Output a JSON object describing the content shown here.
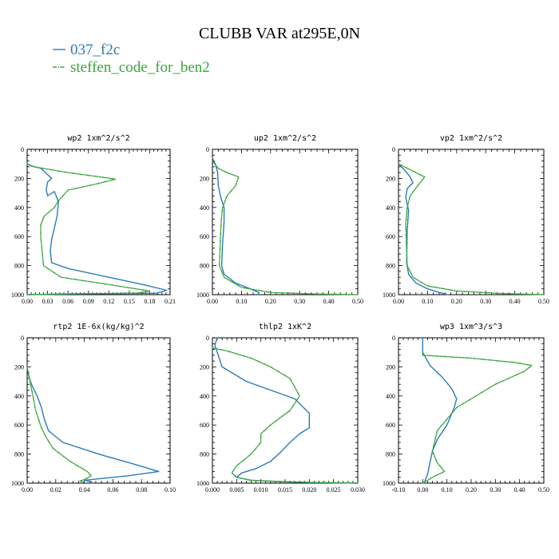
{
  "figure": {
    "title": "CLUBB VAR at295E,0N",
    "legend": [
      {
        "label": "037_f2c",
        "color": "#2b7bb9",
        "dash": false
      },
      {
        "label": "steffen_code_for_ben2",
        "color": "#3aa33a",
        "dash": true
      }
    ]
  },
  "chart_data": [
    {
      "type": "line",
      "title": "wp2  1xm^2/s^2",
      "xlabel": "",
      "ylabel": "",
      "xlim": [
        0,
        0.21
      ],
      "ylim": [
        1000,
        0
      ],
      "xticks": [
        "0.00",
        "0.03",
        "0.06",
        "0.09",
        "0.12",
        "0.15",
        "0.18",
        "0.21"
      ],
      "yticks": [
        "0",
        "200",
        "400",
        "600",
        "800",
        "1000"
      ],
      "series": [
        {
          "name": "037_f2c",
          "color": "#2b7bb9",
          "dash": false,
          "x": [
            0.0,
            0.006,
            0.02,
            0.036,
            0.03,
            0.028,
            0.03,
            0.04,
            0.046,
            0.044,
            0.04,
            0.036,
            0.034,
            0.036,
            0.06,
            0.12,
            0.17,
            0.205,
            0.19,
            0.07,
            0.0
          ],
          "y": [
            100,
            115,
            130,
            200,
            225,
            280,
            320,
            290,
            360,
            460,
            540,
            620,
            700,
            780,
            820,
            880,
            930,
            970,
            990,
            995,
            1000
          ]
        },
        {
          "name": "steffen_code_for_ben2",
          "color": "#3aa33a",
          "dash": true,
          "x": [
            0.0,
            0.01,
            0.06,
            0.1,
            0.13,
            0.1,
            0.06,
            0.045,
            0.04,
            0.025,
            0.02,
            0.02,
            0.024,
            0.05,
            0.12,
            0.16,
            0.18,
            0.16,
            0.05,
            0.0
          ],
          "y": [
            100,
            120,
            160,
            185,
            205,
            240,
            280,
            360,
            400,
            460,
            520,
            600,
            800,
            880,
            930,
            960,
            975,
            990,
            995,
            1000
          ]
        }
      ]
    },
    {
      "type": "line",
      "title": "up2  1xm^2/s^2",
      "xlabel": "",
      "ylabel": "",
      "xlim": [
        0,
        0.5
      ],
      "ylim": [
        1000,
        0
      ],
      "xticks": [
        "0.00",
        "0.10",
        "0.20",
        "0.30",
        "0.40",
        "0.50"
      ],
      "yticks": [
        "0",
        "200",
        "400",
        "600",
        "800",
        "1000"
      ],
      "series": [
        {
          "name": "037_f2c",
          "color": "#2b7bb9",
          "dash": false,
          "x": [
            0.0,
            0.01,
            0.018,
            0.02,
            0.03,
            0.04,
            0.04,
            0.035,
            0.032,
            0.04,
            0.08,
            0.13,
            0.16,
            0.16
          ],
          "y": [
            60,
            100,
            160,
            250,
            340,
            400,
            500,
            650,
            800,
            860,
            920,
            960,
            985,
            1000
          ]
        },
        {
          "name": "steffen_code_for_ben2",
          "color": "#3aa33a",
          "dash": true,
          "x": [
            0.0,
            0.02,
            0.05,
            0.09,
            0.08,
            0.05,
            0.035,
            0.03,
            0.024,
            0.04,
            0.1,
            0.2,
            0.35,
            0.5
          ],
          "y": [
            80,
            130,
            160,
            190,
            250,
            320,
            400,
            500,
            800,
            880,
            950,
            985,
            995,
            1000
          ]
        }
      ]
    },
    {
      "type": "line",
      "title": "vp2  1xm^2/s^2",
      "xlabel": "",
      "ylabel": "",
      "xlim": [
        0,
        0.5
      ],
      "ylim": [
        1000,
        0
      ],
      "xticks": [
        "0.00",
        "0.10",
        "0.20",
        "0.30",
        "0.40",
        "0.50"
      ],
      "yticks": [
        "0",
        "200",
        "400",
        "600",
        "800",
        "1000"
      ],
      "series": [
        {
          "name": "037_f2c",
          "color": "#2b7bb9",
          "dash": false,
          "x": [
            0.0,
            0.02,
            0.04,
            0.05,
            0.03,
            0.025,
            0.035,
            0.03,
            0.028,
            0.035,
            0.06,
            0.1,
            0.14,
            0.17
          ],
          "y": [
            100,
            140,
            190,
            230,
            270,
            330,
            420,
            560,
            780,
            860,
            920,
            960,
            985,
            1000
          ]
        },
        {
          "name": "steffen_code_for_ben2",
          "color": "#3aa33a",
          "dash": true,
          "x": [
            0.0,
            0.04,
            0.07,
            0.09,
            0.07,
            0.04,
            0.03,
            0.025,
            0.03,
            0.05,
            0.1,
            0.2,
            0.35,
            0.5
          ],
          "y": [
            100,
            140,
            170,
            190,
            240,
            320,
            400,
            520,
            800,
            880,
            940,
            975,
            992,
            1000
          ]
        }
      ]
    },
    {
      "type": "line",
      "title": "rtp2  1E-6x(kg/kg)^2",
      "xlabel": "",
      "ylabel": "",
      "xlim": [
        0,
        0.1
      ],
      "ylim": [
        1000,
        0
      ],
      "xticks": [
        "0.00",
        "0.02",
        "0.04",
        "0.06",
        "0.08",
        "0.10"
      ],
      "yticks": [
        "0",
        "200",
        "400",
        "600",
        "800",
        "1000"
      ],
      "series": [
        {
          "name": "037_f2c",
          "color": "#2b7bb9",
          "dash": false,
          "x": [
            0.0,
            0.001,
            0.003,
            0.007,
            0.01,
            0.012,
            0.015,
            0.025,
            0.05,
            0.075,
            0.092,
            0.07,
            0.04,
            0.045,
            0.045
          ],
          "y": [
            200,
            260,
            320,
            400,
            480,
            560,
            640,
            720,
            800,
            870,
            920,
            950,
            980,
            990,
            1000
          ]
        },
        {
          "name": "steffen_code_for_ben2",
          "color": "#3aa33a",
          "dash": true,
          "x": [
            0.0,
            0.002,
            0.004,
            0.006,
            0.008,
            0.01,
            0.013,
            0.018,
            0.03,
            0.042,
            0.045,
            0.04,
            0.037,
            0.04,
            0.04
          ],
          "y": [
            200,
            300,
            400,
            500,
            560,
            620,
            680,
            760,
            850,
            920,
            950,
            975,
            985,
            995,
            1000
          ]
        }
      ]
    },
    {
      "type": "line",
      "title": "thlp2  1xK^2",
      "xlabel": "",
      "ylabel": "",
      "xlim": [
        0,
        0.03
      ],
      "ylim": [
        1000,
        0
      ],
      "xticks": [
        "0.000",
        "0.005",
        "0.010",
        "0.015",
        "0.020",
        "0.025",
        "0.030"
      ],
      "yticks": [
        "0",
        "200",
        "400",
        "600",
        "800",
        "1000"
      ],
      "series": [
        {
          "name": "037_f2c",
          "color": "#2b7bb9",
          "dash": false,
          "x": [
            0.001,
            0.0005,
            0.001,
            0.002,
            0.007,
            0.017,
            0.02,
            0.02,
            0.018,
            0.016,
            0.014,
            0.012,
            0.009,
            0.006,
            0.005,
            0.008,
            0.014,
            0.02,
            0.026,
            0.03
          ],
          "y": [
            0,
            50,
            100,
            200,
            300,
            420,
            520,
            620,
            660,
            720,
            790,
            850,
            900,
            930,
            960,
            980,
            990,
            995,
            998,
            1000
          ]
        },
        {
          "name": "steffen_code_for_ben2",
          "color": "#3aa33a",
          "dash": true,
          "x": [
            0.0,
            0.003,
            0.008,
            0.012,
            0.016,
            0.018,
            0.016,
            0.012,
            0.01,
            0.01,
            0.008,
            0.005,
            0.004,
            0.005,
            0.008,
            0.015,
            0.02,
            0.026,
            0.03
          ],
          "y": [
            70,
            90,
            140,
            200,
            280,
            400,
            500,
            600,
            660,
            720,
            800,
            880,
            930,
            960,
            980,
            990,
            995,
            998,
            1000
          ]
        }
      ]
    },
    {
      "type": "line",
      "title": "wp3  1xm^3/s^3",
      "xlabel": "",
      "ylabel": "",
      "xlim": [
        -0.1,
        0.5
      ],
      "ylim": [
        1000,
        0
      ],
      "xticks": [
        "-0.10",
        "0.00",
        "0.10",
        "0.20",
        "0.30",
        "0.40",
        "0.50"
      ],
      "yticks": [
        "0",
        "200",
        "400",
        "600",
        "800",
        "1000"
      ],
      "series": [
        {
          "name": "037_f2c",
          "color": "#2b7bb9",
          "dash": false,
          "x": [
            0.0,
            0.0,
            0.03,
            0.08,
            0.12,
            0.14,
            0.13,
            0.1,
            0.06,
            0.04,
            0.03,
            0.02,
            0.005
          ],
          "y": [
            0,
            100,
            190,
            270,
            350,
            420,
            480,
            600,
            700,
            780,
            860,
            940,
            1000
          ]
        },
        {
          "name": "steffen_code_for_ben2",
          "color": "#3aa33a",
          "dash": true,
          "x": [
            0.0,
            0.0,
            0.2,
            0.38,
            0.45,
            0.42,
            0.3,
            0.14,
            0.06,
            0.04,
            0.06,
            0.09,
            0.04,
            0.0
          ],
          "y": [
            100,
            120,
            140,
            170,
            190,
            230,
            320,
            480,
            640,
            780,
            860,
            920,
            960,
            1000
          ]
        }
      ]
    }
  ]
}
